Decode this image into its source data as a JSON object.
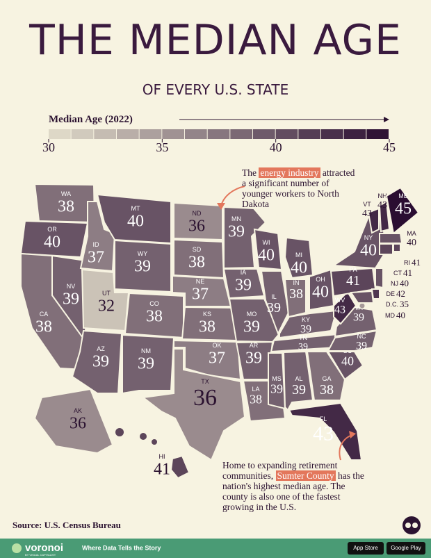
{
  "header": {
    "title": "THE MEDIAN AGE",
    "subtitle": "OF EVERY U.S. STATE"
  },
  "legend": {
    "title": "Median Age (2022)",
    "lim": [
      30,
      45
    ],
    "ticks": [
      30,
      35,
      40,
      45
    ],
    "colors": [
      "#e4dfcc",
      "#2a0d31"
    ]
  },
  "states": [
    {
      "code": "WA",
      "value": 38
    },
    {
      "code": "OR",
      "value": 40
    },
    {
      "code": "CA",
      "value": 38
    },
    {
      "code": "NV",
      "value": 39
    },
    {
      "code": "ID",
      "value": 37
    },
    {
      "code": "MT",
      "value": 40
    },
    {
      "code": "WY",
      "value": 39
    },
    {
      "code": "UT",
      "value": 32
    },
    {
      "code": "AZ",
      "value": 39
    },
    {
      "code": "NM",
      "value": 39
    },
    {
      "code": "CO",
      "value": 38
    },
    {
      "code": "ND",
      "value": 36
    },
    {
      "code": "SD",
      "value": 38
    },
    {
      "code": "NE",
      "value": 37
    },
    {
      "code": "KS",
      "value": 38
    },
    {
      "code": "OK",
      "value": 37
    },
    {
      "code": "TX",
      "value": 36
    },
    {
      "code": "MN",
      "value": 39
    },
    {
      "code": "IA",
      "value": 39
    },
    {
      "code": "MO",
      "value": 39
    },
    {
      "code": "AR",
      "value": 39
    },
    {
      "code": "LA",
      "value": 38
    },
    {
      "code": "WI",
      "value": 40
    },
    {
      "code": "IL",
      "value": 39
    },
    {
      "code": "MI",
      "value": 40
    },
    {
      "code": "IN",
      "value": 38
    },
    {
      "code": "OH",
      "value": 40
    },
    {
      "code": "KY",
      "value": 39
    },
    {
      "code": "TN",
      "value": 39
    },
    {
      "code": "MS",
      "value": 39
    },
    {
      "code": "AL",
      "value": 39
    },
    {
      "code": "GA",
      "value": 38
    },
    {
      "code": "FL",
      "value": 43
    },
    {
      "code": "SC",
      "value": 40
    },
    {
      "code": "NC",
      "value": 39
    },
    {
      "code": "VA",
      "value": 39
    },
    {
      "code": "WV",
      "value": 43
    },
    {
      "code": "PA",
      "value": 41
    },
    {
      "code": "NY",
      "value": 40
    },
    {
      "code": "VT",
      "value": 43
    },
    {
      "code": "NH",
      "value": 43
    },
    {
      "code": "ME",
      "value": 45
    },
    {
      "code": "MA",
      "value": 40
    },
    {
      "code": "RI",
      "value": 41
    },
    {
      "code": "CT",
      "value": 41
    },
    {
      "code": "NJ",
      "value": 40
    },
    {
      "code": "DE",
      "value": 42
    },
    {
      "code": "D.C.",
      "value": 35
    },
    {
      "code": "MD",
      "value": 40
    },
    {
      "code": "AK",
      "value": 36
    },
    {
      "code": "HI",
      "value": 41
    }
  ],
  "annotations": [
    {
      "parts": [
        "The ",
        "energy industry",
        " attracted a significant number of younger workers to North Dakota"
      ],
      "highlight": 1
    },
    {
      "parts": [
        "Home to expanding retirement communities, ",
        "Sumter County",
        " has the nation's highest median age. The county is also one of the fastest growing in the U.S."
      ],
      "highlight": 1
    }
  ],
  "source": "Source: U.S. Census Bureau",
  "footer": {
    "brand": "voronoi",
    "byline": "BY VISUAL CAPITALIST",
    "tagline": "Where Data Tells the Story",
    "badges": [
      "App Store",
      "Google Play"
    ]
  }
}
